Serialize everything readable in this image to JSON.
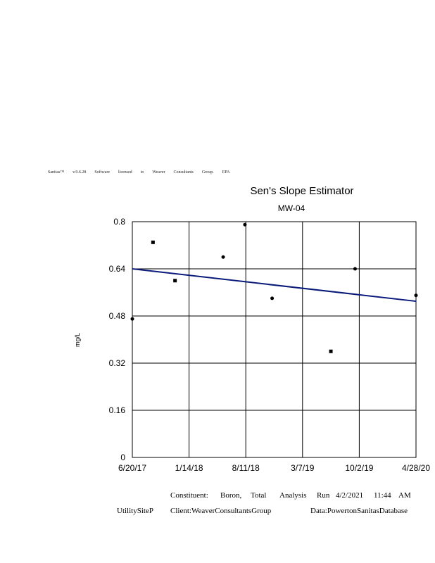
{
  "license": [
    "Sanitas™",
    "v.9.6.28",
    "Software",
    "licensed",
    "to",
    "Weaver",
    "Consultants",
    "Group.",
    "EPA"
  ],
  "footer": {
    "constituent_label": "Constituent:",
    "constituent_value": "Boron,",
    "constituent_value2": "Total",
    "analysis_label": "Analysis",
    "run_label": "Run",
    "run_date": "4/2/2021",
    "run_time": "11:44",
    "run_ampm": "AM",
    "site": "UtilitySiteP",
    "client": "Client:WeaverConsultantsGroup",
    "data": "Data:PowertonSanitasDatabase"
  },
  "chart_data": {
    "type": "scatter",
    "title": "Sen's Slope Estimator",
    "subtitle": "MW-04",
    "ylabel": "mg/L",
    "xlabel": "",
    "x_ticks": [
      "6/20/17",
      "1/14/18",
      "8/11/18",
      "3/7/19",
      "10/2/19",
      "4/28/20"
    ],
    "y_ticks": [
      "0",
      "0.16",
      "0.32",
      "0.48",
      "0.64",
      "0.8"
    ],
    "ylim": [
      0,
      0.8
    ],
    "xlim": [
      "2017-06-20",
      "2020-04-28"
    ],
    "grid": true,
    "points": [
      {
        "x": "2017-06-20",
        "y": 0.47,
        "marker": "circle"
      },
      {
        "x": "2017-09-04",
        "y": 0.73,
        "marker": "square"
      },
      {
        "x": "2017-11-24",
        "y": 0.6,
        "marker": "square"
      },
      {
        "x": "2018-05-20",
        "y": 0.68,
        "marker": "circle"
      },
      {
        "x": "2018-08-08",
        "y": 0.79,
        "marker": "circle"
      },
      {
        "x": "2018-11-16",
        "y": 0.54,
        "marker": "circle"
      },
      {
        "x": "2019-06-20",
        "y": 0.36,
        "marker": "square"
      },
      {
        "x": "2019-09-17",
        "y": 0.64,
        "marker": "circle"
      },
      {
        "x": "2020-04-28",
        "y": 0.55,
        "marker": "circle"
      }
    ],
    "trend_line": {
      "start": {
        "x": "2017-06-20",
        "y": 0.64
      },
      "end": {
        "x": "2020-04-28",
        "y": 0.53
      },
      "color": "#0a1a7a"
    }
  }
}
